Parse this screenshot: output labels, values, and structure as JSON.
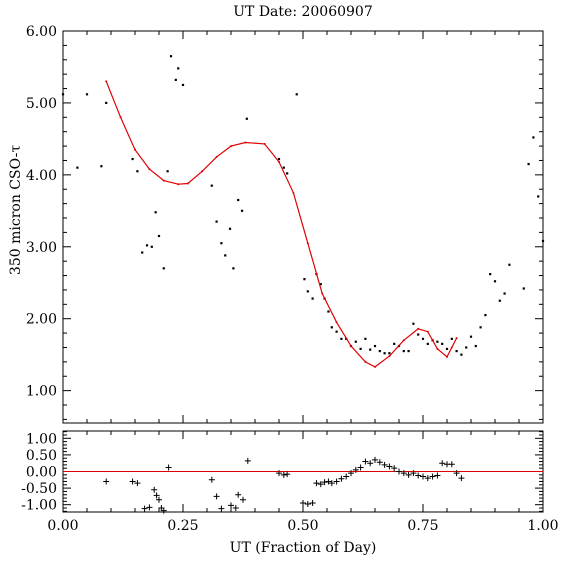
{
  "chart_data": [
    {
      "type": "scatter",
      "title": "UT Date: 20060907",
      "xlabel": "",
      "ylabel": "350 micron CSO-τ",
      "xlim": [
        0.0,
        1.0
      ],
      "ylim": [
        0.55,
        6.0
      ],
      "y_tick_labels": [
        "1.00",
        "2.00",
        "3.00",
        "4.00",
        "5.00",
        "6.00"
      ],
      "y_tick_values": [
        1.0,
        2.0,
        3.0,
        4.0,
        5.0,
        6.0
      ],
      "grid": false,
      "series": [
        {
          "marker": "dot",
          "color": "#000000",
          "x": [
            0.0,
            0.03,
            0.05,
            0.08,
            0.09,
            0.145,
            0.155,
            0.165,
            0.175,
            0.185,
            0.193,
            0.2,
            0.21,
            0.218,
            0.225,
            0.235,
            0.24,
            0.25,
            0.31,
            0.32,
            0.33,
            0.338,
            0.348,
            0.355,
            0.365,
            0.373,
            0.383,
            0.45,
            0.46,
            0.467,
            0.487,
            0.503,
            0.51,
            0.52,
            0.528,
            0.537,
            0.545,
            0.553,
            0.56,
            0.57,
            0.58,
            0.59,
            0.6,
            0.61,
            0.62,
            0.63,
            0.64,
            0.65,
            0.66,
            0.67,
            0.68,
            0.69,
            0.7,
            0.71,
            0.72,
            0.73,
            0.74,
            0.75,
            0.76,
            0.77,
            0.78,
            0.79,
            0.8,
            0.81,
            0.82,
            0.83,
            0.84,
            0.85,
            0.86,
            0.87,
            0.88,
            0.89,
            0.9,
            0.91,
            0.92,
            0.93,
            0.96,
            0.97,
            0.98,
            0.99,
            1.0
          ],
          "y": [
            5.12,
            4.1,
            5.12,
            4.12,
            5.0,
            4.22,
            4.05,
            2.92,
            3.02,
            3.0,
            3.48,
            3.15,
            2.7,
            4.05,
            5.65,
            5.32,
            5.48,
            5.25,
            3.85,
            3.35,
            3.05,
            2.88,
            3.25,
            2.7,
            3.65,
            3.5,
            4.78,
            4.22,
            4.1,
            4.02,
            5.12,
            2.55,
            2.38,
            2.28,
            2.62,
            2.48,
            2.28,
            2.1,
            1.88,
            1.82,
            1.72,
            1.72,
            1.62,
            1.68,
            1.58,
            1.72,
            1.57,
            1.62,
            1.55,
            1.52,
            1.52,
            1.65,
            1.62,
            1.55,
            1.55,
            1.93,
            1.78,
            1.72,
            1.65,
            1.7,
            1.68,
            1.65,
            1.58,
            1.72,
            1.55,
            1.5,
            1.6,
            1.75,
            1.62,
            1.88,
            2.05,
            2.62,
            2.52,
            2.25,
            2.35,
            2.75,
            2.42,
            4.15,
            4.52,
            3.7,
            3.08
          ]
        },
        {
          "marker": "line",
          "color": "#e00000",
          "x": [
            0.09,
            0.12,
            0.15,
            0.18,
            0.21,
            0.24,
            0.26,
            0.29,
            0.32,
            0.35,
            0.38,
            0.42,
            0.45,
            0.48,
            0.51,
            0.54,
            0.57,
            0.6,
            0.63,
            0.65,
            0.68,
            0.71,
            0.74,
            0.76,
            0.78,
            0.8,
            0.81,
            0.82
          ],
          "y": [
            5.3,
            4.8,
            4.35,
            4.08,
            3.92,
            3.87,
            3.88,
            4.05,
            4.25,
            4.4,
            4.45,
            4.43,
            4.18,
            3.75,
            3.05,
            2.35,
            1.95,
            1.62,
            1.4,
            1.33,
            1.48,
            1.7,
            1.86,
            1.82,
            1.58,
            1.47,
            1.6,
            1.73
          ]
        }
      ]
    },
    {
      "type": "scatter",
      "title": "",
      "xlabel": "UT (Fraction of Day)",
      "ylabel": "",
      "xlim": [
        0.0,
        1.0
      ],
      "ylim": [
        -1.22,
        1.22
      ],
      "x_tick_labels": [
        "0.00",
        "0.25",
        "0.50",
        "0.75",
        "1.00"
      ],
      "x_tick_values": [
        0.0,
        0.25,
        0.5,
        0.75,
        1.0
      ],
      "y_tick_labels": [
        "1.00",
        "0.50",
        "0.00",
        "-0.50",
        "-1.00"
      ],
      "y_tick_values": [
        1.0,
        0.5,
        0.0,
        -0.5,
        -1.0
      ],
      "grid": false,
      "zero_line_color": "#e00000",
      "series": [
        {
          "marker": "plus",
          "color": "#000000",
          "x": [
            0.09,
            0.145,
            0.155,
            0.17,
            0.18,
            0.19,
            0.195,
            0.2,
            0.205,
            0.21,
            0.22,
            0.31,
            0.32,
            0.33,
            0.35,
            0.36,
            0.365,
            0.375,
            0.385,
            0.45,
            0.46,
            0.467,
            0.5,
            0.51,
            0.52,
            0.528,
            0.537,
            0.545,
            0.553,
            0.56,
            0.57,
            0.58,
            0.59,
            0.6,
            0.61,
            0.62,
            0.63,
            0.64,
            0.65,
            0.66,
            0.67,
            0.68,
            0.69,
            0.7,
            0.71,
            0.72,
            0.73,
            0.74,
            0.75,
            0.76,
            0.77,
            0.78,
            0.79,
            0.8,
            0.81,
            0.82,
            0.83
          ],
          "y": [
            -0.3,
            -0.3,
            -0.35,
            -1.12,
            -1.08,
            -0.55,
            -0.72,
            -0.85,
            -1.1,
            -1.18,
            0.12,
            -0.25,
            -0.75,
            -1.12,
            -1.02,
            -1.1,
            -0.7,
            -0.85,
            0.32,
            -0.05,
            -0.1,
            -0.08,
            -0.95,
            -0.98,
            -0.95,
            -0.35,
            -0.38,
            -0.32,
            -0.3,
            -0.35,
            -0.3,
            -0.22,
            -0.15,
            -0.05,
            0.05,
            0.12,
            0.3,
            0.25,
            0.35,
            0.28,
            0.2,
            0.15,
            0.1,
            0.0,
            -0.05,
            -0.1,
            -0.05,
            -0.12,
            -0.15,
            -0.2,
            -0.15,
            -0.12,
            0.25,
            0.22,
            0.22,
            -0.05,
            -0.2
          ]
        }
      ]
    }
  ]
}
